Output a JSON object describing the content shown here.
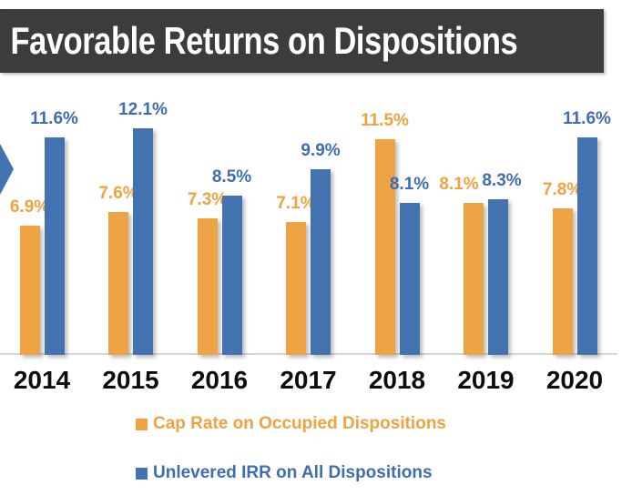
{
  "header": {
    "title": "Favorable Returns on Dispositions",
    "background_color": "#3D3B3C",
    "text_color": "#FFFFFF"
  },
  "decor": {
    "edge_arrow_icon_color": "#4273B2"
  },
  "chart_data": {
    "type": "bar",
    "title": "Favorable Returns on Dispositions",
    "categories": [
      "2014",
      "2015",
      "2016",
      "2017",
      "2018",
      "2019",
      "2020"
    ],
    "series": [
      {
        "name": "Cap Rate on Occupied Dispositions",
        "color": "#EEA345",
        "label_color": "#F0A240",
        "values": [
          6.9,
          7.6,
          7.3,
          7.1,
          11.5,
          8.1,
          7.8
        ]
      },
      {
        "name": "Unlevered IRR on All Dispositions",
        "color": "#4273B0",
        "label_color": "#3E6EB0",
        "values": [
          11.6,
          12.1,
          8.5,
          9.9,
          8.1,
          8.3,
          11.6
        ]
      }
    ],
    "value_suffix": "%",
    "data_labels": true,
    "xlabel": "",
    "ylabel": "",
    "ylim": [
      0,
      13
    ],
    "grid": false,
    "y_axis_visible": false,
    "legend_position": "bottom",
    "axis_line_color": "#D6D6D6"
  }
}
